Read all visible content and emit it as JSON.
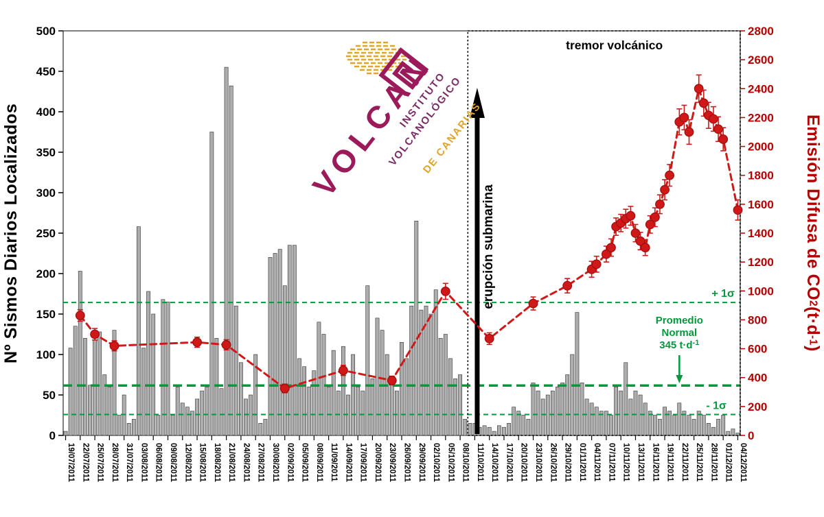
{
  "logo": {
    "word": "VOLCAN",
    "line1": "INSTITUTO",
    "line2": "VOLCANOLÓGICO",
    "line3": "DE CANARIAS"
  },
  "chart_data": {
    "type": "combo",
    "title": "",
    "x_days_total": 139,
    "x_tick_labels": [
      "19/07/2011",
      "22/07/2011",
      "25/07/2011",
      "28/07/2011",
      "31/07/2011",
      "03/08/2011",
      "06/08/2011",
      "09/08/2011",
      "12/08/2011",
      "15/08/2011",
      "18/08/2011",
      "21/08/2011",
      "24/08/2011",
      "27/08/2011",
      "30/08/2011",
      "02/09/2011",
      "05/09/2011",
      "08/09/2011",
      "11/09/2011",
      "14/09/2011",
      "17/09/2011",
      "20/09/2011",
      "23/09/2011",
      "26/09/2011",
      "29/09/2011",
      "02/10/2011",
      "05/10/2011",
      "08/10/2011",
      "11/10/2011",
      "14/10/2011",
      "17/10/2011",
      "20/10/2011",
      "23/10/2011",
      "26/10/2011",
      "29/10/2011",
      "01/11/2011",
      "04/11/2011",
      "07/11/2011",
      "10/11/2011",
      "13/11/2011",
      "16/11/2011",
      "19/11/2011",
      "22/11/2011",
      "25/11/2011",
      "28/11/2011",
      "01/12/2011",
      "04/12/2011"
    ],
    "left_axis": {
      "title": "Nº Sismos Diarios Localizados",
      "min": 0,
      "max": 500,
      "step": 50
    },
    "right_axis": {
      "title": "Emisión Difusa de CO₂ (t·d⁻¹)",
      "title_parts": [
        {
          "t": "Emisión Difusa de CO"
        },
        {
          "t": "2",
          "shift": "sub"
        },
        {
          "t": " (t·d"
        },
        {
          "t": "-1",
          "shift": "sup"
        },
        {
          "t": ")"
        }
      ],
      "min": 0,
      "max": 2800,
      "step": 200
    },
    "series": [
      {
        "name": "Nº Sismos Diarios Localizados",
        "type": "bar",
        "axis": "left",
        "values": [
          5,
          108,
          135,
          203,
          120,
          62,
          118,
          128,
          75,
          60,
          130,
          25,
          50,
          15,
          20,
          258,
          108,
          178,
          150,
          25,
          168,
          165,
          25,
          60,
          40,
          35,
          30,
          45,
          55,
          60,
          375,
          120,
          58,
          455,
          432,
          160,
          90,
          45,
          50,
          100,
          15,
          20,
          220,
          225,
          230,
          185,
          235,
          235,
          95,
          85,
          60,
          80,
          140,
          125,
          60,
          105,
          55,
          110,
          50,
          100,
          60,
          55,
          185,
          70,
          145,
          130,
          100,
          65,
          55,
          115,
          95,
          160,
          265,
          155,
          160,
          150,
          180,
          120,
          125,
          95,
          70,
          75,
          20,
          15,
          15,
          10,
          12,
          10,
          5,
          12,
          10,
          15,
          35,
          30,
          25,
          20,
          65,
          55,
          45,
          50,
          55,
          60,
          65,
          75,
          100,
          152,
          65,
          45,
          40,
          35,
          30,
          30,
          25,
          60,
          55,
          90,
          45,
          55,
          50,
          40,
          30,
          25,
          20,
          35,
          30,
          25,
          40,
          30,
          25,
          20,
          30,
          25,
          15,
          10,
          20,
          25,
          5,
          8,
          3
        ]
      },
      {
        "name": "Emisión Difusa de CO₂ (t·d⁻¹)",
        "type": "line-scatter-errorbars",
        "axis": "right",
        "points": [
          [
            3,
            830,
            40
          ],
          [
            6,
            700,
            40
          ],
          [
            10,
            620,
            35
          ],
          [
            27,
            645,
            35
          ],
          [
            33,
            627,
            35
          ],
          [
            45,
            325,
            30
          ],
          [
            57,
            450,
            35
          ],
          [
            67,
            380,
            30
          ],
          [
            78,
            997,
            55
          ],
          [
            87,
            670,
            40
          ],
          [
            96,
            913,
            45
          ],
          [
            103,
            1036,
            50
          ],
          [
            108,
            1150,
            55
          ],
          [
            109,
            1185,
            55
          ],
          [
            111,
            1255,
            55
          ],
          [
            112,
            1300,
            60
          ],
          [
            113,
            1445,
            60
          ],
          [
            114,
            1470,
            60
          ],
          [
            115,
            1500,
            65
          ],
          [
            116,
            1520,
            65
          ],
          [
            117,
            1400,
            60
          ],
          [
            118,
            1345,
            60
          ],
          [
            119,
            1300,
            55
          ],
          [
            120,
            1460,
            60
          ],
          [
            121,
            1510,
            65
          ],
          [
            122,
            1600,
            65
          ],
          [
            123,
            1700,
            70
          ],
          [
            124,
            1800,
            75
          ],
          [
            126,
            2170,
            90
          ],
          [
            127,
            2200,
            85
          ],
          [
            128,
            2100,
            85
          ],
          [
            130,
            2400,
            95
          ],
          [
            131,
            2300,
            90
          ],
          [
            132,
            2215,
            90
          ],
          [
            133,
            2190,
            85
          ],
          [
            134,
            2120,
            85
          ],
          [
            135,
            2050,
            80
          ],
          [
            138,
            1560,
            70
          ]
        ]
      }
    ],
    "reference_lines": [
      {
        "label": "+ 1σ",
        "axis": "right",
        "value": 920,
        "style": "thin-dashed"
      },
      {
        "label": "Promedio Normal 345 t·d⁻¹",
        "axis": "right",
        "value": 345,
        "style": "thick-dashed"
      },
      {
        "label": "- 1σ",
        "axis": "right",
        "value": 145,
        "style": "thin-dashed"
      }
    ],
    "mean_label_lines": [
      "Promedio",
      "Normal"
    ],
    "mean_value_parts": [
      {
        "t": "345 t·d"
      },
      {
        "t": "-1",
        "shift": "sup"
      }
    ],
    "annotations": {
      "tremor_label": "tremor volcánico",
      "tremor_box_start_day": 83,
      "eruption_label": "erupción submarina",
      "eruption_day": 84.5
    },
    "colors": {
      "bar": "#ADADAD",
      "bar_edge": "#2E2E2E",
      "co2": "#D01818",
      "co2_edge": "#9B0F0F",
      "right_axis": "#B30000",
      "green": "#009A3C",
      "purple": "#9A1A5A",
      "purple2": "#7B2B66",
      "gold": "#DFA42C",
      "black": "#000000"
    }
  }
}
